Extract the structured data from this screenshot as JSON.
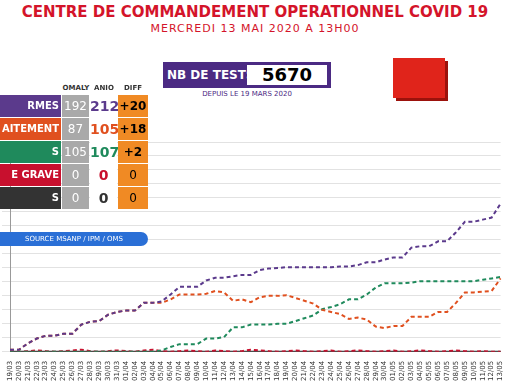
{
  "header": {
    "title": "CENTRE DE COMMANDEMENT OPERATIONNEL COVID 19",
    "subtitle": "MERCREDI 13 MAI 2020 A 13H00"
  },
  "tests": {
    "label": "NB DE TESTS:",
    "value": 5670,
    "note": "DEPUIS LE 19 MARS 2020"
  },
  "table": {
    "columns": [
      "OMALY",
      "ANIO",
      "DIFF"
    ],
    "rows": [
      {
        "label": "RMES",
        "omaly": 192,
        "anio": 212,
        "diff": {
          "value": 20,
          "label": "+20"
        }
      },
      {
        "label": "AITEMENT",
        "omaly": 87,
        "anio": 105,
        "diff": {
          "value": 18,
          "label": "+18"
        }
      },
      {
        "label": "S",
        "omaly": 105,
        "anio": 107,
        "diff": {
          "value": 2,
          "label": "+2"
        }
      },
      {
        "label": "E GRAVE",
        "omaly": 0,
        "anio": 0,
        "diff": {
          "value": 0,
          "label": "0"
        }
      },
      {
        "label": "S",
        "omaly": 0,
        "anio": 0,
        "diff": {
          "value": 0,
          "label": "0"
        }
      }
    ],
    "source": "SOURCE MSANP / IPM / OMS"
  },
  "chart_data": {
    "type": "line",
    "categories": [
      "19/03",
      "20/03",
      "21/03",
      "22/03",
      "23/03",
      "24/03",
      "25/03",
      "26/03",
      "27/03",
      "28/03",
      "29/03",
      "30/03",
      "31/03",
      "01/04",
      "02/04",
      "03/04",
      "04/04",
      "05/04",
      "06/04",
      "07/04",
      "08/04",
      "09/04",
      "10/04",
      "11/04",
      "12/04",
      "13/04",
      "14/04",
      "15/04",
      "16/04",
      "17/04",
      "18/04",
      "19/04",
      "20/04",
      "21/04",
      "22/04",
      "23/04",
      "24/04",
      "25/04",
      "26/04",
      "27/04",
      "28/04",
      "29/04",
      "30/04",
      "01/05",
      "02/05",
      "03/05",
      "04/05",
      "05/05",
      "06/05",
      "07/05",
      "08/05",
      "09/05",
      "10/05",
      "11/05",
      "12/05",
      "13/05"
    ],
    "series": [
      {
        "color": "#5b3a8c",
        "line_style": "dashed",
        "values": [
          3,
          3,
          12,
          19,
          23,
          23,
          26,
          26,
          39,
          43,
          44,
          53,
          57,
          59,
          59,
          70,
          70,
          72,
          82,
          93,
          93,
          93,
          102,
          106,
          106,
          108,
          110,
          110,
          117,
          119,
          120,
          121,
          121,
          121,
          121,
          121,
          121,
          122,
          122,
          124,
          128,
          128,
          132,
          135,
          135,
          149,
          151,
          151,
          158,
          158,
          171,
          186,
          186,
          189,
          192,
          212
        ]
      },
      {
        "color": "#e0501f",
        "line_style": "dashed",
        "values": [
          3,
          3,
          12,
          19,
          23,
          23,
          26,
          26,
          39,
          43,
          44,
          53,
          57,
          59,
          59,
          70,
          70,
          70,
          75,
          82,
          82,
          82,
          83,
          87,
          85,
          73,
          75,
          71,
          78,
          80,
          80,
          81,
          77,
          73,
          69,
          60,
          57,
          54,
          47,
          49,
          46,
          36,
          34,
          37,
          37,
          50,
          50,
          50,
          57,
          57,
          70,
          85,
          85,
          86,
          87,
          105
        ]
      },
      {
        "color": "#1f8a5c",
        "line_style": "dashed",
        "values": [
          0,
          0,
          0,
          0,
          0,
          0,
          0,
          0,
          0,
          0,
          0,
          0,
          0,
          0,
          0,
          0,
          0,
          2,
          7,
          11,
          11,
          11,
          19,
          19,
          21,
          35,
          35,
          39,
          39,
          39,
          40,
          40,
          44,
          48,
          52,
          61,
          64,
          68,
          75,
          75,
          82,
          92,
          98,
          98,
          98,
          99,
          101,
          101,
          101,
          101,
          101,
          101,
          101,
          103,
          105,
          107
        ]
      },
      {
        "color": "#c8102e",
        "line_style": "dashed",
        "values": [
          0,
          0,
          1,
          2,
          1,
          0,
          1,
          2,
          3,
          1,
          0,
          1,
          2,
          1,
          0,
          2,
          3,
          1,
          0,
          1,
          2,
          1,
          0,
          2,
          1,
          0,
          1,
          3,
          2,
          1,
          0,
          1,
          2,
          1,
          0,
          1,
          2,
          0,
          1,
          2,
          1,
          0,
          1,
          2,
          0,
          1,
          2,
          1,
          0,
          1,
          2,
          1,
          0,
          1,
          0,
          0
        ]
      },
      {
        "color": "#333333",
        "line_style": "solid",
        "values": [
          0,
          0,
          0,
          0,
          0,
          0,
          0,
          0,
          0,
          0,
          0,
          0,
          0,
          0,
          0,
          0,
          0,
          0,
          0,
          0,
          0,
          0,
          0,
          0,
          0,
          0,
          0,
          0,
          0,
          0,
          0,
          0,
          0,
          0,
          0,
          0,
          0,
          0,
          0,
          0,
          0,
          0,
          0,
          0,
          0,
          0,
          0,
          0,
          0,
          0,
          0,
          0,
          0,
          0,
          0,
          0
        ]
      }
    ],
    "ylim": [
      0,
      300
    ],
    "yticks": [
      0,
      20,
      40,
      60,
      80,
      100,
      120,
      140,
      160,
      180,
      200,
      220,
      240,
      260,
      280,
      300
    ],
    "grid": true,
    "tick_labels": "x"
  }
}
